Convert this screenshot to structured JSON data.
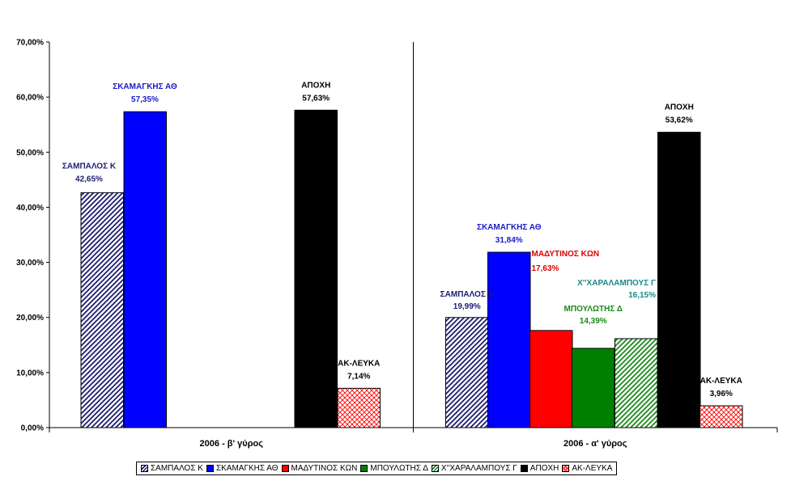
{
  "chart_data": {
    "type": "bar",
    "ylim": [
      0,
      70
    ],
    "y_ticks": [
      "0,00%",
      "10,00%",
      "20,00%",
      "30,00%",
      "40,00%",
      "50,00%",
      "60,00%",
      "70,00%"
    ],
    "legend_position": "bottom",
    "categories": [
      "2006 - β' γύρος",
      "2006 - α' γύρος"
    ],
    "series": [
      {
        "name": "ΣΑΜΠΑΛΟΣ Κ",
        "values": [
          42.65,
          19.99
        ],
        "labels": [
          "42,65%",
          "19,99%"
        ],
        "color": "#1c1c6e",
        "fill": "diag-dark",
        "label_color": "#1c1c6e"
      },
      {
        "name": "ΣΚΑΜΑΓΚΗΣ ΑΘ",
        "values": [
          57.35,
          31.84
        ],
        "labels": [
          "57,35%",
          "31,84%"
        ],
        "color": "#0000ff",
        "fill": "solid",
        "label_color": "#1a1acc"
      },
      {
        "name": "ΜΑΔΥΤΙΝΟΣ ΚΩΝ",
        "values": [
          null,
          17.63
        ],
        "labels": [
          "",
          "17,63%"
        ],
        "color": "#ff0000",
        "fill": "solid",
        "label_color": "#e00000"
      },
      {
        "name": "ΜΠΟΥΛΩΤΗΣ Δ",
        "values": [
          null,
          14.39
        ],
        "labels": [
          "",
          "14,39%"
        ],
        "color": "#008000",
        "fill": "solid",
        "label_color": "#1a8a1a"
      },
      {
        "name": "Χ''ΧΑΡΑΛΑΜΠΟΥΣ Γ",
        "values": [
          null,
          16.15
        ],
        "labels": [
          "",
          "16,15%"
        ],
        "color": "#1a8a1a",
        "fill": "diag-green",
        "label_color": "#1a8a8a"
      },
      {
        "name": "ΑΠΟΧΗ",
        "values": [
          57.63,
          53.62
        ],
        "labels": [
          "57,63%",
          "53,62%"
        ],
        "color": "#000000",
        "fill": "solid",
        "label_color": "#000000"
      },
      {
        "name": "ΑΚ-ΛΕΥΚΑ",
        "values": [
          7.14,
          3.96
        ],
        "labels": [
          "7,14%",
          "3,96%"
        ],
        "color": "#ff0000",
        "fill": "cross-red",
        "label_color": "#000000"
      }
    ]
  }
}
